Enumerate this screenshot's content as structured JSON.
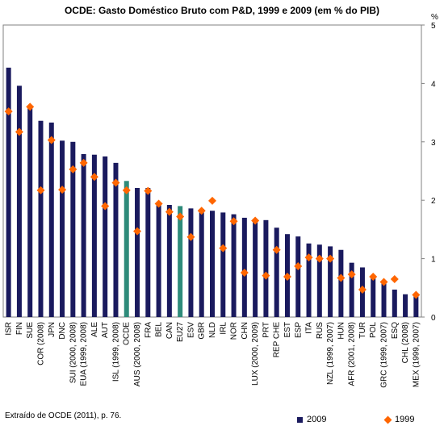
{
  "chart_data": {
    "type": "bar",
    "title": "OCDE: Gasto Doméstico Bruto com P&D, 1999 e 2009 (em % do PIB)",
    "ylabel": "%",
    "ylim": [
      0,
      5
    ],
    "yticks": [
      "0",
      "1",
      "2",
      "3",
      "4",
      "5"
    ],
    "grid": false,
    "legend_position": "bottom-right",
    "source": "Extraído de OCDE (2011), p. 76.",
    "categories": [
      "ISR",
      "FIN",
      "SUE",
      "COR (2008)",
      "JPN",
      "DNC",
      "SUI (2000, 2008)",
      "EUA (1999, 2008)",
      "ALE",
      "AUT",
      "ISL (1999, 2008)",
      "OCDE",
      "AUS (2000, 2008)",
      "FRA",
      "BEL",
      "CAN",
      "EU27",
      "ESV",
      "GBR",
      "NLD",
      "IRL",
      "NOR",
      "CHN",
      "LUX (2000, 2009)",
      "PRT",
      "REP CHE",
      "EST",
      "ESP",
      "ITA",
      "RUS",
      "NZL (1999, 2007)",
      "HUN",
      "AFR (2001, 2008)",
      "TUR",
      "POL",
      "GRC (1999, 2007)",
      "ESQ",
      "CHL (2008)",
      "MEX (1999, 2007)"
    ],
    "highlight_categories": [
      "OCDE",
      "EU27"
    ],
    "series": [
      {
        "name": "2009",
        "type": "bar",
        "color": "#1a1a5e",
        "highlight_color": "#2e8b7a",
        "values": [
          4.27,
          3.96,
          3.62,
          3.36,
          3.33,
          3.02,
          3.0,
          2.79,
          2.78,
          2.75,
          2.64,
          2.33,
          2.21,
          2.21,
          1.96,
          1.92,
          1.9,
          1.86,
          1.85,
          1.82,
          1.79,
          1.76,
          1.7,
          1.68,
          1.66,
          1.53,
          1.42,
          1.38,
          1.26,
          1.24,
          1.21,
          1.15,
          0.93,
          0.85,
          0.68,
          0.58,
          0.47,
          0.39,
          0.37
        ]
      },
      {
        "name": "1999",
        "type": "scatter",
        "marker": "diamond",
        "color": "#ff6600",
        "values": [
          3.52,
          3.17,
          3.6,
          2.17,
          3.03,
          2.18,
          2.53,
          2.64,
          2.4,
          1.9,
          2.3,
          2.17,
          1.47,
          2.16,
          1.94,
          1.8,
          1.72,
          1.37,
          1.82,
          1.99,
          1.18,
          1.64,
          0.76,
          1.65,
          0.71,
          1.15,
          0.69,
          0.87,
          1.02,
          1.0,
          1.0,
          0.67,
          0.73,
          0.47,
          0.69,
          0.6,
          0.65,
          null,
          0.38
        ]
      }
    ]
  }
}
